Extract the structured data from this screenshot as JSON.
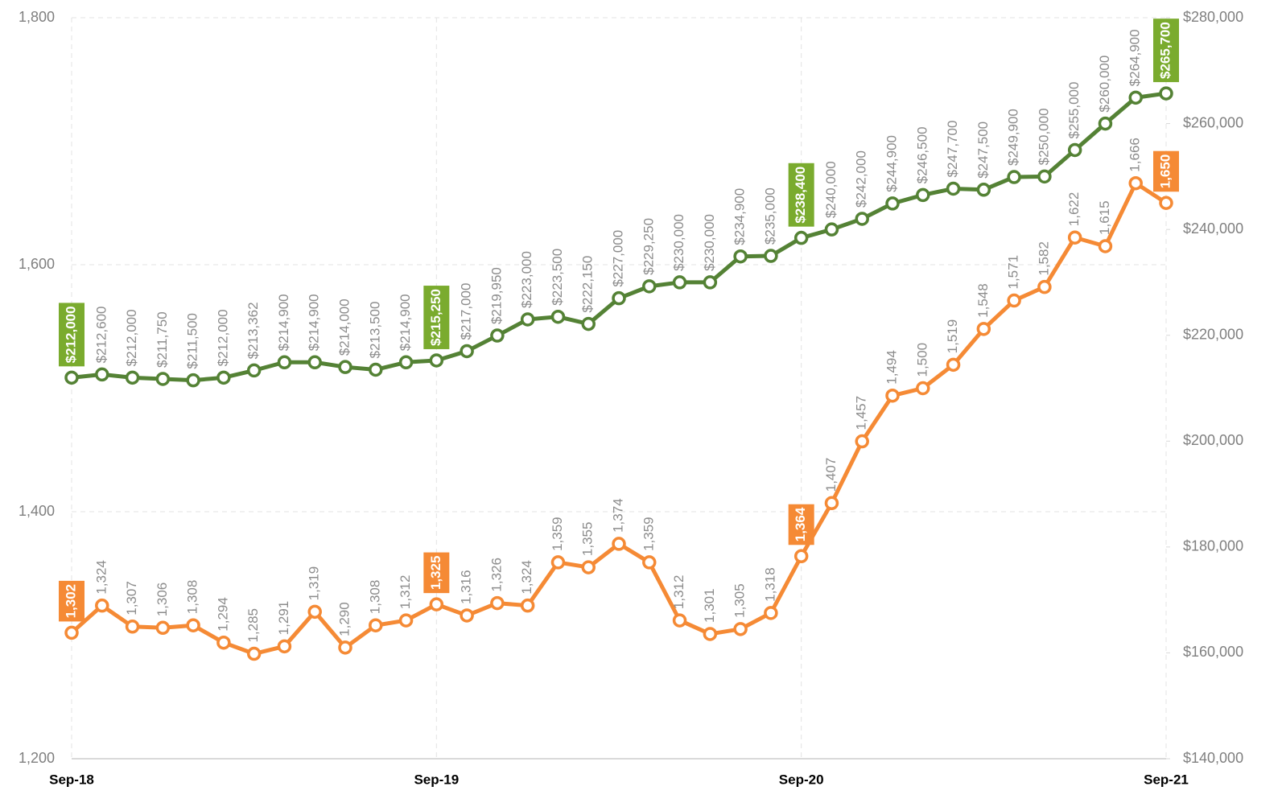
{
  "chart_data": {
    "type": "line",
    "categories": [
      "Sep-18",
      null,
      null,
      null,
      null,
      null,
      null,
      null,
      null,
      null,
      null,
      null,
      "Sep-19",
      null,
      null,
      null,
      null,
      null,
      null,
      null,
      null,
      null,
      null,
      null,
      "Sep-20",
      null,
      null,
      null,
      null,
      null,
      null,
      null,
      null,
      null,
      null,
      null,
      "Sep-21"
    ],
    "series": [
      {
        "color": "#548235",
        "axis": "y2",
        "values": [
          212000,
          212600,
          212000,
          211750,
          211500,
          212000,
          213362,
          214900,
          214900,
          214000,
          213500,
          214900,
          215250,
          217000,
          219950,
          223000,
          223500,
          222150,
          227000,
          229250,
          230000,
          230000,
          234900,
          235000,
          238400,
          240000,
          242000,
          244900,
          246500,
          247700,
          247500,
          249900,
          250000,
          255000,
          260000,
          264900,
          265700
        ],
        "value_labels": [
          "$212,000",
          "$212,600",
          "$212,000",
          "$211,750",
          "$211,500",
          "$212,000",
          "$213,362",
          "$214,900",
          "$214,900",
          "$214,000",
          "$213,500",
          "$214,900",
          "$215,250",
          "$217,000",
          "$219,950",
          "$223,000",
          "$223,500",
          "$222,150",
          "$227,000",
          "$229,250",
          "$230,000",
          "$230,000",
          "$234,900",
          "$235,000",
          "$238,400",
          "$240,000",
          "$242,000",
          "$244,900",
          "$246,500",
          "$247,700",
          "$247,500",
          "$249,900",
          "$250,000",
          "$255,000",
          "$260,000",
          "$264,900",
          "$265,700"
        ],
        "highlight_color": "#7aab2e"
      },
      {
        "color": "#f58a35",
        "values": [
          1302,
          1324,
          1307,
          1306,
          1308,
          1294,
          1285,
          1291,
          1319,
          1290,
          1308,
          1312,
          1325,
          1316,
          1326,
          1324,
          1359,
          1355,
          1374,
          1359,
          1312,
          1301,
          1305,
          1318,
          1364,
          1407,
          1457,
          1494,
          1500,
          1519,
          1548,
          1571,
          1582,
          1622,
          1615,
          1666,
          1650
        ],
        "value_labels": [
          "1,302",
          "1,324",
          "1,307",
          "1,306",
          "1,308",
          "1,294",
          "1,285",
          "1,291",
          "1,319",
          "1,290",
          "1,308",
          "1,312",
          "1,325",
          "1,316",
          "1,326",
          "1,324",
          "1,359",
          "1,355",
          "1,374",
          "1,359",
          "1,312",
          "1,301",
          "1,305",
          "1,318",
          "1,364",
          "1,407",
          "1,457",
          "1,494",
          "1,500",
          "1,519",
          "1,548",
          "1,571",
          "1,582",
          "1,622",
          "1,615",
          "1,666",
          "1,650"
        ],
        "highlight_color": "#f58a35"
      }
    ],
    "ylim": [
      1200,
      1800
    ],
    "yticks": [
      {
        "value": 1200,
        "label": "1,200"
      },
      {
        "value": 1400,
        "label": "1,400"
      },
      {
        "value": 1600,
        "label": "1,600"
      },
      {
        "value": 1800,
        "label": "1,800"
      }
    ],
    "y2lim": [
      140000,
      280000
    ],
    "y2ticks": [
      {
        "value": 140000,
        "label": "$140,000"
      },
      {
        "value": 160000,
        "label": "$160,000"
      },
      {
        "value": 180000,
        "label": "$180,000"
      },
      {
        "value": 200000,
        "label": "$200,000"
      },
      {
        "value": 220000,
        "label": "$220,000"
      },
      {
        "value": 240000,
        "label": "$240,000"
      },
      {
        "value": 260000,
        "label": "$260,000"
      },
      {
        "value": 280000,
        "label": "$280,000"
      }
    ],
    "grid": true
  }
}
